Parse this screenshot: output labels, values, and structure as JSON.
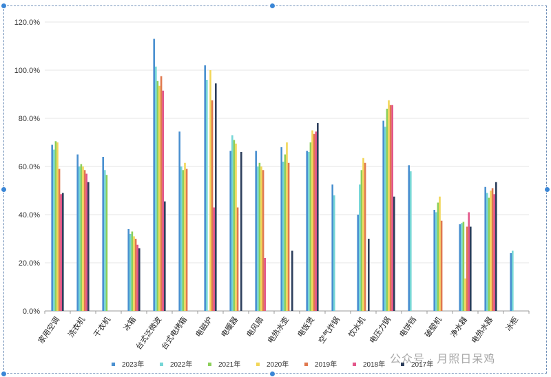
{
  "chart_data": {
    "type": "bar",
    "title": "",
    "xlabel": "",
    "ylabel": "",
    "ylim": [
      0,
      1.2
    ],
    "y_ticks": [
      "0.0%",
      "20.0%",
      "40.0%",
      "60.0%",
      "80.0%",
      "100.0%",
      "120.0%"
    ],
    "grid": true,
    "legend_position": "bottom",
    "categories": [
      "家用空调",
      "洗衣机",
      "干衣机",
      "冰箱",
      "台式泛微波",
      "台式电烤箱",
      "电磁炉",
      "电暖器",
      "电风扇",
      "电热水壶",
      "电饭煲",
      "空气炸锅",
      "饮水机",
      "电压力锅",
      "电饼铛",
      "破壁机",
      "净水器",
      "电热水器",
      "冰柜"
    ],
    "series": [
      {
        "name": "2023年",
        "color": "#4a90d0",
        "values": [
          0.69,
          0.65,
          0.64,
          0.34,
          1.13,
          0.745,
          1.02,
          0.665,
          0.665,
          0.68,
          0.665,
          0.525,
          0.4,
          0.79,
          0.605,
          0.42,
          0.36,
          0.515,
          0.24
        ]
      },
      {
        "name": "2022年",
        "color": "#76d6d6",
        "values": [
          0.67,
          0.6,
          0.585,
          0.32,
          1.015,
          0.6,
          0.96,
          0.73,
          0.6,
          0.62,
          0.66,
          0.48,
          0.525,
          0.765,
          0.58,
          0.41,
          0.365,
          0.49,
          0.25
        ]
      },
      {
        "name": "2021年",
        "color": "#8ccf5a",
        "values": [
          0.705,
          0.61,
          0.565,
          0.33,
          0.955,
          0.585,
          null,
          0.71,
          0.615,
          0.65,
          0.7,
          null,
          0.585,
          0.84,
          null,
          0.45,
          0.37,
          0.47,
          null
        ]
      },
      {
        "name": "2020年",
        "color": "#f2d657",
        "values": [
          0.7,
          0.6,
          null,
          0.31,
          0.935,
          0.615,
          1.0,
          0.695,
          0.6,
          0.7,
          0.75,
          null,
          0.635,
          0.875,
          null,
          0.475,
          0.135,
          0.5,
          null
        ]
      },
      {
        "name": "2019年",
        "color": "#e0784e",
        "values": [
          0.59,
          0.585,
          null,
          0.3,
          0.975,
          0.59,
          0.875,
          0.43,
          0.585,
          0.615,
          0.735,
          null,
          0.615,
          0.855,
          null,
          0.375,
          0.35,
          0.51,
          null
        ]
      },
      {
        "name": "2018年",
        "color": "#e3568a",
        "values": [
          0.485,
          0.57,
          null,
          0.275,
          0.915,
          null,
          0.43,
          null,
          0.22,
          null,
          0.745,
          null,
          null,
          0.855,
          null,
          null,
          0.41,
          0.485,
          null
        ]
      },
      {
        "name": "2017年",
        "color": "#2c3e5c",
        "values": [
          0.49,
          0.535,
          null,
          0.26,
          0.455,
          null,
          0.945,
          0.66,
          null,
          0.25,
          0.78,
          null,
          0.3,
          0.475,
          null,
          null,
          0.35,
          0.535,
          null
        ]
      }
    ]
  },
  "watermark": "公众号 · 月照日呆鸡"
}
